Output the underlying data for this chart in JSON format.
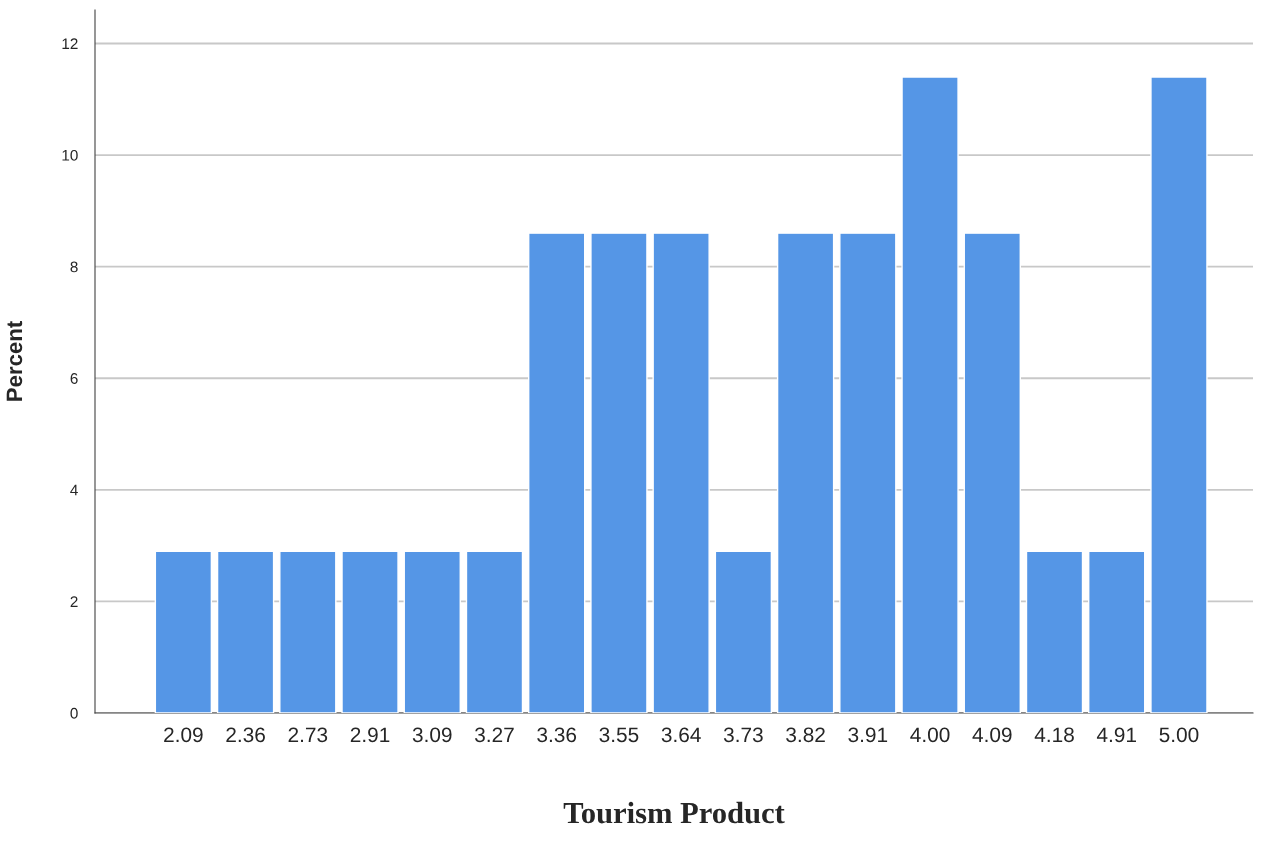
{
  "chart_data": {
    "type": "bar",
    "xlabel": "Tourism Product",
    "ylabel": "Percent",
    "categories": [
      "2.09",
      "2.36",
      "2.73",
      "2.91",
      "3.09",
      "3.27",
      "3.36",
      "3.55",
      "3.64",
      "3.73",
      "3.82",
      "3.91",
      "4.00",
      "4.09",
      "4.18",
      "4.91",
      "5.00"
    ],
    "values": [
      2.9,
      2.9,
      2.9,
      2.9,
      2.9,
      2.9,
      8.6,
      8.6,
      8.6,
      2.9,
      8.6,
      8.6,
      11.4,
      8.6,
      2.9,
      2.9,
      11.4
    ],
    "color": "#5596e6",
    "ylim": [
      0,
      12.6
    ],
    "yticks": [
      0,
      2,
      4,
      6,
      8,
      10,
      12
    ],
    "grid": "y",
    "legend": false
  }
}
